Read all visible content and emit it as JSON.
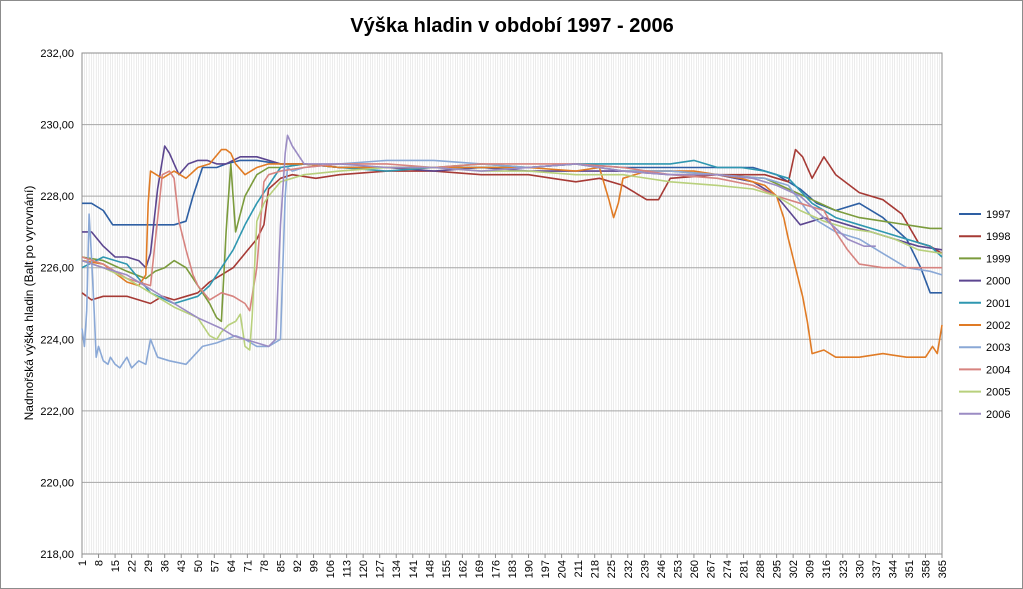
{
  "chart_data": {
    "type": "line",
    "title": "Výška hladin v období 1997 - 2006",
    "xlabel": "",
    "ylabel": "Nadmořská výška hladin (Balt po vyrovnání)",
    "xlim": [
      1,
      365
    ],
    "ylim": [
      218,
      232
    ],
    "ytick_labels": [
      "218,00",
      "220,00",
      "222,00",
      "224,00",
      "226,00",
      "228,00",
      "230,00",
      "232,00"
    ],
    "xtick_labels": [
      "1",
      "8",
      "15",
      "22",
      "29",
      "36",
      "43",
      "50",
      "57",
      "64",
      "71",
      "78",
      "85",
      "92",
      "99",
      "106",
      "113",
      "120",
      "127",
      "134",
      "141",
      "148",
      "155",
      "162",
      "169",
      "176",
      "183",
      "190",
      "197",
      "204",
      "211",
      "218",
      "225",
      "232",
      "239",
      "246",
      "253",
      "260",
      "267",
      "274",
      "281",
      "288",
      "295",
      "302",
      "309",
      "316",
      "323",
      "330",
      "337",
      "344",
      "351",
      "358",
      "365"
    ],
    "grid": true,
    "legend": "right",
    "series": [
      {
        "name": "1997",
        "color": "#2e5fa3",
        "x": [
          1,
          5,
          10,
          14,
          20,
          30,
          40,
          45,
          48,
          52,
          58,
          62,
          68,
          75,
          85,
          95,
          110,
          130,
          150,
          170,
          190,
          210,
          230,
          250,
          270,
          285,
          295,
          305,
          312,
          320,
          330,
          340,
          350,
          356,
          360,
          365
        ],
        "y": [
          227.8,
          227.8,
          227.6,
          227.2,
          227.2,
          227.2,
          227.2,
          227.3,
          228.0,
          228.8,
          228.8,
          228.9,
          229.0,
          229.0,
          228.9,
          228.9,
          228.8,
          228.8,
          228.8,
          228.8,
          228.8,
          228.9,
          228.8,
          228.8,
          228.8,
          228.8,
          228.6,
          228.2,
          227.8,
          227.6,
          227.8,
          227.4,
          226.8,
          226.0,
          225.3,
          225.3
        ]
      },
      {
        "name": "1998",
        "color": "#a63a35",
        "x": [
          1,
          5,
          10,
          20,
          30,
          35,
          40,
          45,
          50,
          55,
          60,
          65,
          70,
          75,
          78,
          80,
          85,
          90,
          100,
          110,
          130,
          150,
          170,
          190,
          200,
          210,
          220,
          230,
          240,
          245,
          250,
          270,
          290,
          300,
          303,
          306,
          310,
          315,
          320,
          330,
          340,
          348,
          355,
          360,
          365
        ],
        "y": [
          225.3,
          225.1,
          225.2,
          225.2,
          225.0,
          225.2,
          225.1,
          225.2,
          225.3,
          225.6,
          225.8,
          226.0,
          226.4,
          226.8,
          227.2,
          228.2,
          228.5,
          228.6,
          228.5,
          228.6,
          228.7,
          228.7,
          228.6,
          228.6,
          228.5,
          228.4,
          228.5,
          228.3,
          227.9,
          227.9,
          228.5,
          228.6,
          228.6,
          228.4,
          229.3,
          229.1,
          228.5,
          229.1,
          228.6,
          228.1,
          227.9,
          227.5,
          226.7,
          226.6,
          226.4
        ]
      },
      {
        "name": "1999",
        "color": "#7b9b3c",
        "x": [
          1,
          10,
          20,
          28,
          32,
          36,
          40,
          45,
          50,
          55,
          58,
          60,
          62,
          64,
          66,
          70,
          75,
          80,
          85,
          95,
          110,
          130,
          150,
          170,
          190,
          210,
          230,
          250,
          270,
          290,
          300,
          310,
          320,
          330,
          340,
          350,
          360,
          365
        ],
        "y": [
          226.3,
          226.2,
          225.9,
          225.7,
          225.9,
          226.0,
          226.2,
          226.0,
          225.5,
          225.0,
          224.6,
          224.5,
          227.0,
          228.9,
          227.0,
          228.0,
          228.6,
          228.8,
          228.8,
          228.9,
          228.8,
          228.8,
          228.8,
          228.9,
          228.8,
          228.9,
          228.7,
          228.7,
          228.6,
          228.5,
          228.2,
          227.9,
          227.6,
          227.4,
          227.3,
          227.2,
          227.1,
          227.1
        ]
      },
      {
        "name": "2000",
        "color": "#5c4690",
        "x": [
          1,
          5,
          10,
          15,
          20,
          25,
          28,
          30,
          33,
          36,
          38,
          42,
          46,
          50,
          54,
          58,
          62,
          68,
          75,
          85,
          95,
          110,
          130,
          150,
          170,
          190,
          210,
          230,
          250,
          270,
          285,
          295,
          305,
          315,
          325,
          335,
          345,
          355,
          365
        ],
        "y": [
          227.0,
          227.0,
          226.6,
          226.3,
          226.3,
          226.2,
          226.0,
          226.4,
          228.2,
          229.4,
          229.2,
          228.6,
          228.9,
          229.0,
          229.0,
          228.9,
          228.9,
          229.1,
          229.1,
          228.9,
          228.9,
          228.8,
          228.8,
          228.7,
          228.8,
          228.7,
          228.7,
          228.7,
          228.6,
          228.6,
          228.4,
          228.0,
          227.2,
          227.4,
          227.2,
          227.0,
          226.8,
          226.6,
          226.5
        ]
      },
      {
        "name": "2001",
        "color": "#2f97b0",
        "x": [
          1,
          10,
          20,
          30,
          40,
          50,
          55,
          60,
          65,
          70,
          75,
          80,
          85,
          95,
          110,
          130,
          150,
          170,
          190,
          210,
          230,
          250,
          260,
          270,
          280,
          290,
          300,
          310,
          320,
          330,
          340,
          350,
          360,
          365
        ],
        "y": [
          226.0,
          226.3,
          226.1,
          225.3,
          225.0,
          225.2,
          225.5,
          226.0,
          226.5,
          227.2,
          227.8,
          228.3,
          228.8,
          228.9,
          228.8,
          228.7,
          228.8,
          228.8,
          228.8,
          228.9,
          228.9,
          228.9,
          229.0,
          228.8,
          228.8,
          228.7,
          228.5,
          227.8,
          227.4,
          227.2,
          227.0,
          226.8,
          226.6,
          226.3
        ]
      },
      {
        "name": "2002",
        "color": "#e07b25",
        "x": [
          1,
          10,
          20,
          25,
          28,
          29,
          30,
          35,
          40,
          45,
          50,
          55,
          60,
          62,
          64,
          66,
          70,
          75,
          80,
          85,
          95,
          110,
          130,
          150,
          170,
          190,
          210,
          220,
          224,
          226,
          228,
          230,
          240,
          260,
          280,
          290,
          295,
          298,
          300,
          303,
          306,
          308,
          310,
          315,
          320,
          330,
          340,
          350,
          358,
          361,
          363,
          365
        ],
        "y": [
          226.2,
          226.1,
          225.6,
          225.5,
          225.8,
          227.8,
          228.7,
          228.5,
          228.7,
          228.5,
          228.8,
          228.9,
          229.3,
          229.3,
          229.2,
          228.9,
          228.6,
          228.8,
          228.9,
          228.9,
          228.9,
          228.8,
          228.8,
          228.8,
          228.8,
          228.8,
          228.7,
          228.8,
          227.9,
          227.4,
          227.8,
          228.5,
          228.7,
          228.7,
          228.5,
          228.3,
          228.0,
          227.4,
          226.8,
          226.0,
          225.2,
          224.5,
          223.6,
          223.7,
          223.5,
          223.5,
          223.6,
          223.5,
          223.5,
          223.8,
          223.6,
          224.4
        ]
      },
      {
        "name": "2003",
        "color": "#8aa8d6",
        "x": [
          1,
          2,
          3,
          4,
          5,
          6,
          7,
          8,
          9,
          10,
          12,
          13,
          15,
          17,
          20,
          22,
          25,
          28,
          30,
          33,
          38,
          45,
          52,
          58,
          62,
          66,
          70,
          75,
          80,
          85,
          86,
          87,
          88,
          90,
          95,
          110,
          130,
          150,
          170,
          190,
          210,
          230,
          250,
          270,
          290,
          300,
          310,
          320,
          330,
          340,
          350,
          360,
          365
        ],
        "y": [
          224.3,
          223.8,
          224.8,
          227.5,
          226.3,
          225.0,
          223.5,
          223.8,
          223.6,
          223.4,
          223.3,
          223.5,
          223.3,
          223.2,
          223.5,
          223.2,
          223.4,
          223.3,
          224.0,
          223.5,
          223.4,
          223.3,
          223.8,
          223.9,
          224.0,
          224.1,
          224.0,
          223.8,
          223.8,
          224.0,
          226.0,
          228.0,
          228.8,
          228.7,
          228.8,
          228.9,
          229.0,
          229.0,
          228.9,
          228.8,
          228.9,
          228.7,
          228.7,
          228.6,
          228.5,
          228.3,
          227.4,
          227.0,
          226.8,
          226.4,
          226.0,
          225.9,
          225.8
        ]
      },
      {
        "name": "2004",
        "color": "#d7837f",
        "x": [
          1,
          10,
          20,
          30,
          35,
          38,
          40,
          42,
          45,
          48,
          50,
          55,
          60,
          65,
          70,
          72,
          75,
          78,
          80,
          85,
          95,
          110,
          130,
          150,
          170,
          190,
          210,
          230,
          250,
          270,
          285,
          295,
          305,
          315,
          320,
          325,
          330,
          340,
          350,
          360,
          365
        ],
        "y": [
          226.3,
          226.1,
          225.7,
          225.5,
          228.6,
          228.7,
          228.5,
          227.3,
          226.5,
          225.8,
          225.5,
          225.1,
          225.3,
          225.2,
          225.0,
          224.8,
          226.0,
          228.4,
          228.6,
          228.7,
          228.8,
          228.9,
          228.9,
          228.8,
          228.9,
          228.9,
          228.9,
          228.8,
          228.6,
          228.5,
          228.3,
          228.0,
          227.8,
          227.6,
          227.0,
          226.5,
          226.1,
          226.0,
          226.0,
          226.0,
          226.0
        ]
      },
      {
        "name": "2005",
        "color": "#b8d07c",
        "x": [
          1,
          10,
          20,
          30,
          40,
          50,
          55,
          58,
          60,
          63,
          66,
          68,
          70,
          72,
          73,
          75,
          78,
          80,
          85,
          95,
          110,
          130,
          150,
          170,
          190,
          210,
          230,
          250,
          270,
          285,
          295,
          305,
          315,
          325,
          335,
          345,
          355,
          365
        ],
        "y": [
          226.2,
          226.0,
          225.7,
          225.3,
          224.9,
          224.6,
          224.1,
          224.0,
          224.2,
          224.4,
          224.5,
          224.7,
          223.8,
          223.7,
          224.6,
          227.3,
          227.8,
          228.0,
          228.4,
          228.6,
          228.7,
          228.8,
          228.8,
          228.7,
          228.7,
          228.6,
          228.6,
          228.4,
          228.3,
          228.2,
          228.0,
          227.6,
          227.3,
          227.1,
          227.0,
          226.8,
          226.5,
          226.4
        ]
      },
      {
        "name": "2006",
        "color": "#9b8cc4",
        "x": [
          1,
          10,
          20,
          30,
          40,
          50,
          60,
          65,
          70,
          75,
          80,
          83,
          85,
          87,
          88,
          90,
          95,
          110,
          130,
          150,
          170,
          190,
          210,
          230,
          250,
          270,
          285,
          295,
          305,
          315,
          325,
          332,
          337
        ],
        "y": [
          226.2,
          226.0,
          225.8,
          225.4,
          225.0,
          224.6,
          224.3,
          224.1,
          224.0,
          223.9,
          223.8,
          224.0,
          227.2,
          229.2,
          229.7,
          229.4,
          228.9,
          228.9,
          228.8,
          228.8,
          228.7,
          228.8,
          228.9,
          228.7,
          228.6,
          228.6,
          228.5,
          228.3,
          228.0,
          227.4,
          226.8,
          226.6,
          226.6
        ]
      }
    ]
  }
}
